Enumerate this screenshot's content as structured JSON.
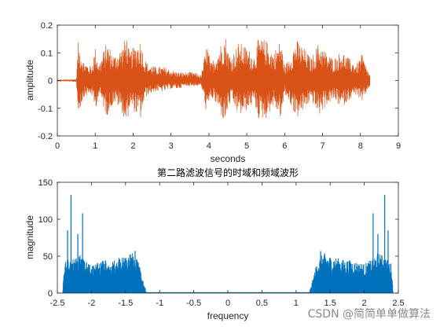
{
  "chart_data": [
    {
      "type": "line",
      "title": "",
      "xlabel": "seconds",
      "ylabel": "amplitude",
      "xlim": [
        0,
        9
      ],
      "ylim": [
        -0.2,
        0.2
      ],
      "xticks": [
        "0",
        "1",
        "2",
        "3",
        "4",
        "5",
        "6",
        "7",
        "8",
        "9"
      ],
      "yticks": [
        "-0.2",
        "-0.1",
        "0",
        "0.1",
        "0.2"
      ],
      "grid": false,
      "color": "#D95319",
      "signal_end": 8.25,
      "envelope": {
        "t": [
          0.0,
          0.5,
          0.55,
          0.7,
          0.9,
          1.0,
          1.1,
          1.3,
          1.5,
          1.7,
          1.8,
          1.85,
          1.9,
          2.0,
          2.2,
          2.3,
          2.4,
          2.6,
          2.8,
          3.0,
          3.2,
          3.4,
          3.6,
          3.8,
          3.95,
          4.0,
          4.05,
          4.2,
          4.4,
          4.45,
          4.5,
          4.6,
          4.8,
          5.0,
          5.2,
          5.3,
          5.5,
          5.7,
          5.9,
          6.0,
          6.2,
          6.3,
          6.5,
          6.7,
          6.9,
          7.1,
          7.3,
          7.5,
          7.7,
          7.9,
          8.05,
          8.1,
          8.25
        ],
        "upper": [
          0.002,
          0.005,
          0.14,
          0.07,
          0.05,
          0.12,
          0.06,
          0.14,
          0.09,
          0.12,
          0.16,
          0.16,
          0.1,
          0.12,
          0.15,
          0.08,
          0.06,
          0.05,
          0.05,
          0.04,
          0.03,
          0.03,
          0.03,
          0.02,
          0.14,
          0.1,
          0.06,
          0.1,
          0.16,
          0.16,
          0.11,
          0.09,
          0.14,
          0.12,
          0.09,
          0.15,
          0.15,
          0.1,
          0.15,
          0.05,
          0.11,
          0.15,
          0.12,
          0.08,
          0.14,
          0.1,
          0.08,
          0.11,
          0.08,
          0.06,
          0.1,
          0.07,
          0.02
        ],
        "lower": [
          -0.002,
          -0.005,
          -0.12,
          -0.06,
          -0.05,
          -0.11,
          -0.05,
          -0.13,
          -0.08,
          -0.11,
          -0.16,
          -0.15,
          -0.1,
          -0.11,
          -0.14,
          -0.07,
          -0.05,
          -0.04,
          -0.04,
          -0.03,
          -0.03,
          -0.02,
          -0.02,
          -0.02,
          -0.13,
          -0.1,
          -0.06,
          -0.09,
          -0.15,
          -0.15,
          -0.1,
          -0.08,
          -0.13,
          -0.11,
          -0.08,
          -0.14,
          -0.14,
          -0.09,
          -0.14,
          -0.05,
          -0.1,
          -0.14,
          -0.11,
          -0.07,
          -0.13,
          -0.09,
          -0.07,
          -0.1,
          -0.07,
          -0.05,
          -0.09,
          -0.06,
          -0.02
        ]
      }
    },
    {
      "type": "area",
      "title": "第二路滤波信号的时域和频域波形",
      "xlabel": "frequency",
      "ylabel": "magnitude",
      "xlim": [
        -2.5,
        2.5
      ],
      "ylim": [
        0,
        150
      ],
      "xticks": [
        "-2.5",
        "-2",
        "-1.5",
        "-1",
        "-0.5",
        "0",
        "0.5",
        "1",
        "1.5",
        "2",
        "2.5"
      ],
      "yticks": [
        "0",
        "50",
        "100",
        "150"
      ],
      "grid": false,
      "color": "#0072BD",
      "band_upper": [
        1.2,
        2.42
      ],
      "spectrum_envelope": {
        "f": [
          1.2,
          1.25,
          1.3,
          1.35,
          1.4,
          1.5,
          1.6,
          1.7,
          1.8,
          1.9,
          2.0,
          2.1,
          2.2,
          2.3,
          2.4,
          2.42
        ],
        "mag": [
          3,
          20,
          40,
          48,
          55,
          50,
          48,
          45,
          45,
          42,
          40,
          45,
          55,
          50,
          40,
          5
        ]
      },
      "peaks": [
        {
          "f": 1.36,
          "mag": 57
        },
        {
          "f": 2.13,
          "mag": 108
        },
        {
          "f": 2.3,
          "mag": 133
        },
        {
          "f": 2.35,
          "mag": 85
        },
        {
          "f": 2.2,
          "mag": 80
        }
      ]
    }
  ],
  "watermark": "CSDN @简简单单做算法"
}
